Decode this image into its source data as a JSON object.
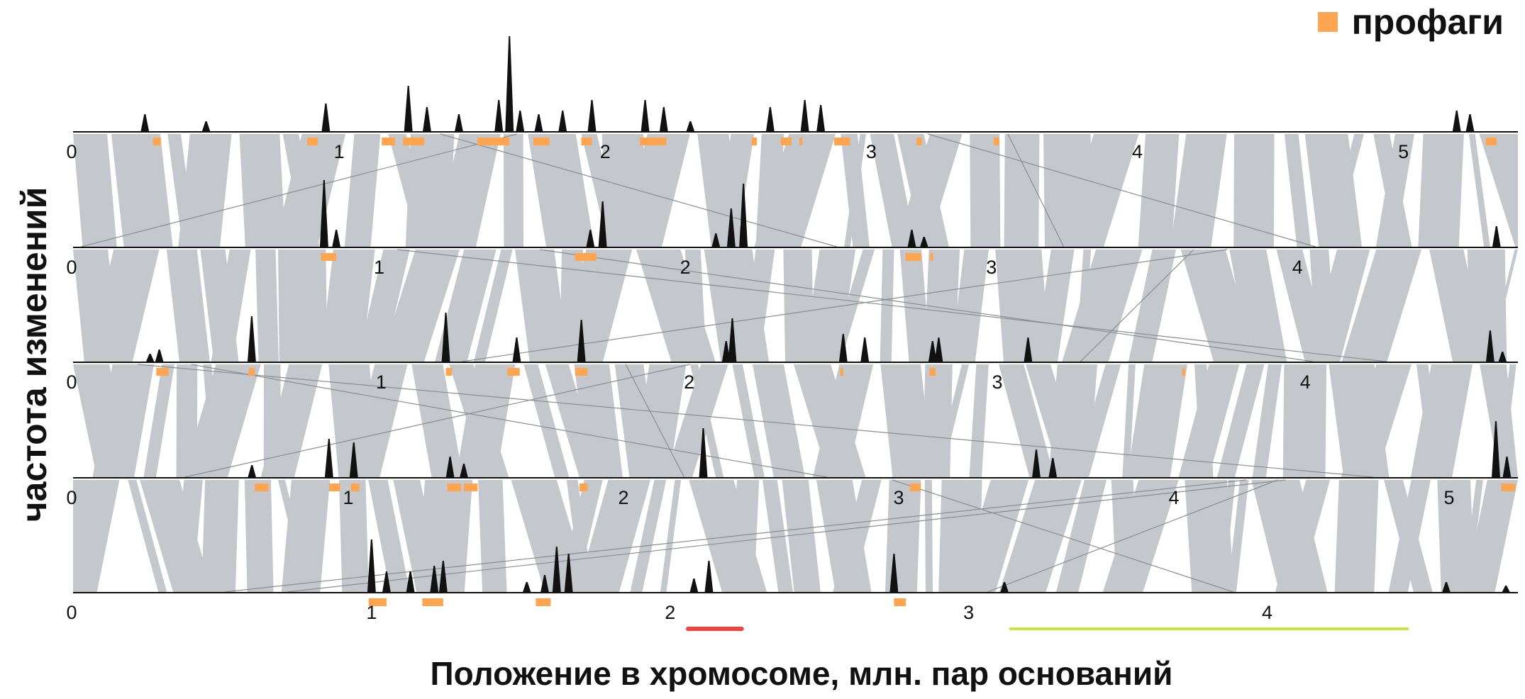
{
  "legend": {
    "label": "профаги",
    "color": "#ffa54f"
  },
  "ylabel": "частота изменений",
  "xlabel": "Положение в хромосоме, млн. пар оснований",
  "chart_data": {
    "type": "area",
    "colors": {
      "peaks": "#111111",
      "synteny": "#c4c7cb",
      "prophage": "#ffa54f",
      "marker_red": "#ee4444",
      "marker_green": "#cce53b"
    },
    "genomes": [
      {
        "name": "",
        "xlim": [
          0,
          5.43
        ],
        "ticks": [
          "0",
          "1",
          "2",
          "3",
          "4",
          "5"
        ],
        "peaks": [
          [
            0.27,
            25
          ],
          [
            0.5,
            15
          ],
          [
            0.95,
            40
          ],
          [
            1.26,
            65
          ],
          [
            1.33,
            35
          ],
          [
            1.45,
            25
          ],
          [
            1.6,
            45
          ],
          [
            1.64,
            135
          ],
          [
            1.68,
            30
          ],
          [
            1.75,
            25
          ],
          [
            1.84,
            30
          ],
          [
            1.95,
            45
          ],
          [
            2.15,
            45
          ],
          [
            2.22,
            35
          ],
          [
            2.32,
            15
          ],
          [
            2.62,
            35
          ],
          [
            2.75,
            45
          ],
          [
            2.81,
            38
          ],
          [
            5.2,
            30
          ],
          [
            5.25,
            25
          ]
        ],
        "prophages": [
          [
            0.3,
            0.33
          ],
          [
            0.88,
            0.92
          ],
          [
            1.16,
            1.21
          ],
          [
            1.24,
            1.32
          ],
          [
            1.52,
            1.64
          ],
          [
            1.73,
            1.79
          ],
          [
            1.91,
            1.95
          ],
          [
            2.13,
            2.23
          ],
          [
            2.55,
            2.57
          ],
          [
            2.66,
            2.7
          ],
          [
            2.73,
            2.74
          ],
          [
            2.86,
            2.92
          ],
          [
            3.17,
            3.19
          ],
          [
            3.46,
            3.48
          ],
          [
            5.31,
            5.35
          ]
        ]
      },
      {
        "name": "",
        "xlim": [
          0,
          4.72
        ],
        "ticks": [
          "0",
          "1",
          "2",
          "3",
          "4"
        ],
        "peaks": [
          [
            0.82,
            95
          ],
          [
            0.86,
            25
          ],
          [
            1.69,
            25
          ],
          [
            1.73,
            65
          ],
          [
            2.1,
            20
          ],
          [
            2.15,
            55
          ],
          [
            2.19,
            90
          ],
          [
            2.74,
            25
          ],
          [
            2.78,
            15
          ],
          [
            4.65,
            30
          ]
        ],
        "prophages": [
          [
            0.81,
            0.86
          ],
          [
            1.64,
            1.71
          ],
          [
            2.72,
            2.77
          ],
          [
            2.8,
            2.81
          ]
        ]
      },
      {
        "name": "",
        "xlim": [
          0,
          4.69
        ],
        "ticks": [
          "0",
          "1",
          "2",
          "3",
          "4"
        ],
        "peaks": [
          [
            0.25,
            12
          ],
          [
            0.28,
            18
          ],
          [
            0.58,
            65
          ],
          [
            1.21,
            70
          ],
          [
            1.44,
            35
          ],
          [
            1.65,
            60
          ],
          [
            2.12,
            30
          ],
          [
            2.14,
            62
          ],
          [
            2.5,
            40
          ],
          [
            2.57,
            35
          ],
          [
            2.79,
            30
          ],
          [
            2.81,
            35
          ],
          [
            3.1,
            35
          ],
          [
            4.6,
            45
          ],
          [
            4.64,
            15
          ]
        ],
        "prophages": [
          [
            0.27,
            0.31
          ],
          [
            0.57,
            0.59
          ],
          [
            1.21,
            1.23
          ],
          [
            1.41,
            1.45
          ],
          [
            1.63,
            1.67
          ],
          [
            2.49,
            2.5
          ],
          [
            2.78,
            2.8
          ],
          [
            3.6,
            3.61
          ]
        ]
      },
      {
        "name": "",
        "xlim": [
          0,
          5.25
        ],
        "ticks": [
          "0",
          "1",
          "2",
          "3",
          "4",
          "5"
        ],
        "peaks": [
          [
            0.65,
            18
          ],
          [
            0.93,
            55
          ],
          [
            1.02,
            50
          ],
          [
            1.37,
            30
          ],
          [
            1.42,
            20
          ],
          [
            2.29,
            70
          ],
          [
            3.5,
            40
          ],
          [
            3.56,
            28
          ],
          [
            5.17,
            80
          ],
          [
            5.21,
            30
          ]
        ],
        "prophages": [
          [
            0.66,
            0.71
          ],
          [
            0.93,
            0.97
          ],
          [
            1.01,
            1.04
          ],
          [
            1.36,
            1.41
          ],
          [
            1.42,
            1.47
          ],
          [
            1.84,
            1.87
          ],
          [
            3.04,
            3.08
          ],
          [
            5.19,
            5.24
          ]
        ]
      },
      {
        "name": "",
        "xlim": [
          0,
          4.84
        ],
        "ticks": [
          "0",
          "1",
          "2",
          "3",
          "4"
        ],
        "peaks": [
          [
            1.0,
            75
          ],
          [
            1.05,
            30
          ],
          [
            1.13,
            30
          ],
          [
            1.21,
            38
          ],
          [
            1.24,
            45
          ],
          [
            1.52,
            15
          ],
          [
            1.58,
            25
          ],
          [
            1.62,
            65
          ],
          [
            1.66,
            55
          ],
          [
            2.08,
            20
          ],
          [
            2.13,
            45
          ],
          [
            2.75,
            55
          ],
          [
            3.12,
            15
          ],
          [
            4.6,
            15
          ],
          [
            4.8,
            10
          ]
        ],
        "prophages": [
          [
            0.99,
            1.05
          ],
          [
            1.17,
            1.24
          ],
          [
            1.55,
            1.6
          ],
          [
            2.75,
            2.79
          ]
        ]
      }
    ],
    "markers": [
      {
        "color": "red",
        "x": [
          2.06,
          2.24
        ]
      },
      {
        "color": "green",
        "x": [
          3.14,
          4.47
        ]
      }
    ]
  }
}
